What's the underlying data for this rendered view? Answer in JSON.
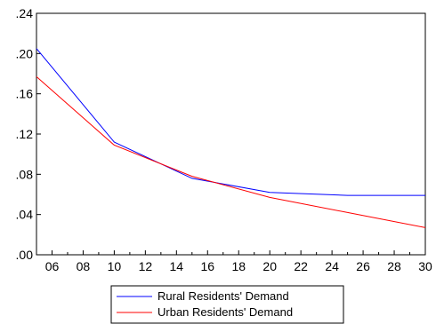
{
  "chart_data": {
    "type": "line",
    "title": "",
    "xlabel": "",
    "ylabel": "",
    "x_ticks": [
      "06",
      "08",
      "10",
      "12",
      "14",
      "16",
      "18",
      "20",
      "22",
      "24",
      "26",
      "28",
      "30"
    ],
    "y_ticks": [
      ".00",
      ".04",
      ".08",
      ".12",
      ".16",
      ".20",
      ".24"
    ],
    "xlim": [
      2005,
      2030
    ],
    "ylim": [
      0,
      0.24
    ],
    "grid": false,
    "legend_position": "bottom",
    "series": [
      {
        "name": "Rural Residents' Demand",
        "color": "#0000ff",
        "x": [
          2005,
          2010,
          2015,
          2020,
          2025,
          2030
        ],
        "y": [
          0.205,
          0.112,
          0.076,
          0.062,
          0.059,
          0.059
        ]
      },
      {
        "name": "Urban Residents' Demand",
        "color": "#ff0000",
        "x": [
          2005,
          2010,
          2015,
          2020,
          2025,
          2030
        ],
        "y": [
          0.177,
          0.109,
          0.078,
          0.057,
          0.042,
          0.027
        ]
      }
    ]
  }
}
